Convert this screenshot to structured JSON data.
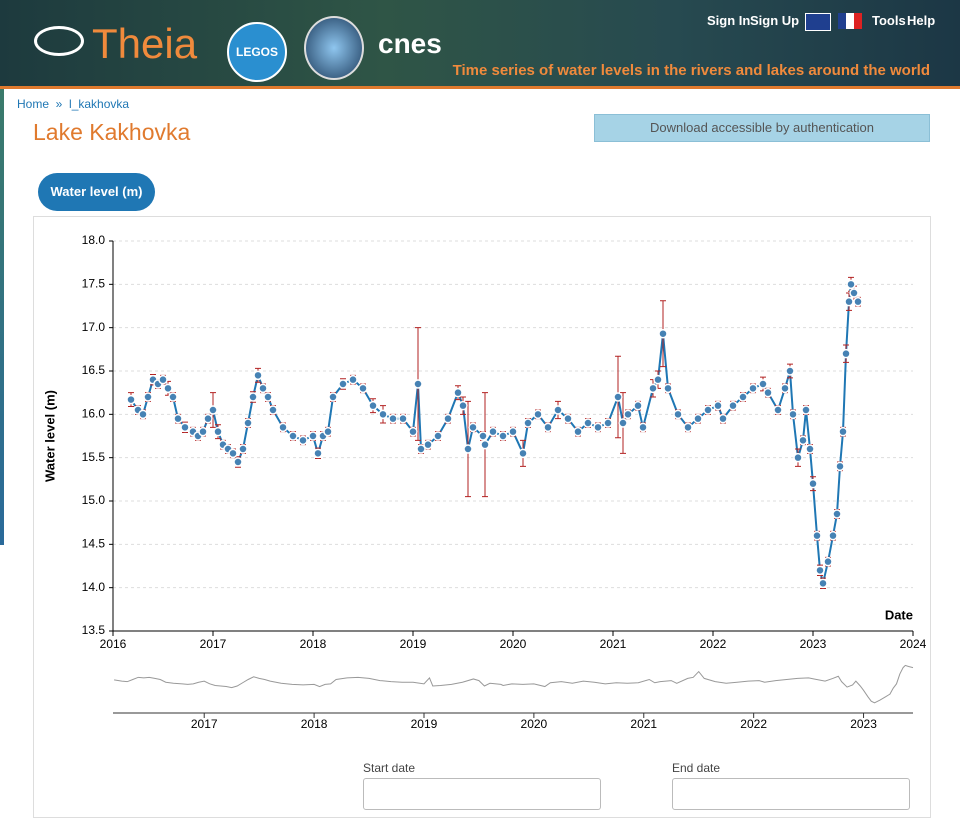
{
  "header": {
    "logo": "Theia",
    "logo2": "LEGOS",
    "logo3": "cnes",
    "links": [
      "Sign In",
      "Sign Up",
      "Tools",
      "Help"
    ],
    "tagline": "Time series of water levels in the rivers and lakes around the world"
  },
  "breadcrumb": [
    "Home",
    "l_kakhovka"
  ],
  "title": "Lake Kakhovka",
  "download": "Download accessible by authentication",
  "tab": "Water level (m)",
  "chart_data": {
    "type": "scatter",
    "ylabel": "Water level (m)",
    "xlabel": "Date",
    "color": "#4682b4",
    "line_color": "#1f77b4",
    "error_color": "#b22222",
    "grid": true,
    "xlim": [
      2016,
      2024
    ],
    "xticks": [
      2016,
      2017,
      2018,
      2019,
      2020,
      2021,
      2022,
      2023,
      2024
    ],
    "ylim": [
      13.5,
      18
    ],
    "yticks": [
      13.5,
      {
        "value": 14,
        "label": "14.0"
      },
      14.5,
      {
        "value": 15,
        "label": "15.0"
      },
      15.5,
      {
        "value": 16,
        "label": "16.0"
      },
      16.5,
      {
        "value": 17,
        "label": "17.0"
      },
      17.5,
      {
        "value": 18,
        "label": "18.0"
      }
    ],
    "x": [
      2016.18,
      2016.25,
      2016.3,
      2016.35,
      2016.4,
      2016.45,
      2016.5,
      2016.55,
      2016.6,
      2016.65,
      2016.72,
      2016.8,
      2016.85,
      2016.9,
      2016.95,
      2017.0,
      2017.05,
      2017.1,
      2017.15,
      2017.2,
      2017.25,
      2017.3,
      2017.35,
      2017.4,
      2017.45,
      2017.5,
      2017.55,
      2017.6,
      2017.7,
      2017.8,
      2017.9,
      2018.0,
      2018.05,
      2018.1,
      2018.15,
      2018.2,
      2018.3,
      2018.4,
      2018.5,
      2018.6,
      2018.7,
      2018.8,
      2018.9,
      2019.0,
      2019.05,
      2019.08,
      2019.15,
      2019.25,
      2019.35,
      2019.45,
      2019.5,
      2019.55,
      2019.6,
      2019.7,
      2019.72,
      2019.8,
      2019.9,
      2020.0,
      2020.1,
      2020.15,
      2020.25,
      2020.35,
      2020.45,
      2020.55,
      2020.65,
      2020.75,
      2020.85,
      2020.95,
      2021.05,
      2021.1,
      2021.15,
      2021.25,
      2021.3,
      2021.4,
      2021.45,
      2021.5,
      2021.55,
      2021.65,
      2021.75,
      2021.85,
      2021.95,
      2022.05,
      2022.1,
      2022.2,
      2022.3,
      2022.4,
      2022.5,
      2022.55,
      2022.65,
      2022.72,
      2022.77,
      2022.8,
      2022.85,
      2022.9,
      2022.93,
      2022.97,
      2023.0,
      2023.04,
      2023.07,
      2023.1,
      2023.15,
      2023.2,
      2023.24,
      2023.27,
      2023.3,
      2023.33,
      2023.36,
      2023.38,
      2023.41,
      2023.45
    ],
    "values": [
      16.17,
      16.05,
      16.0,
      16.2,
      16.4,
      16.35,
      16.4,
      16.3,
      16.2,
      15.95,
      15.85,
      15.8,
      15.75,
      15.8,
      15.95,
      16.05,
      15.8,
      15.65,
      15.6,
      15.55,
      15.45,
      15.6,
      15.9,
      16.2,
      16.45,
      16.3,
      16.2,
      16.05,
      15.85,
      15.75,
      15.7,
      15.75,
      15.55,
      15.75,
      15.8,
      16.2,
      16.35,
      16.4,
      16.3,
      16.1,
      16.0,
      15.95,
      15.95,
      15.8,
      16.35,
      15.6,
      15.65,
      15.75,
      15.95,
      16.25,
      16.1,
      15.6,
      15.85,
      15.75,
      15.65,
      15.8,
      15.75,
      15.8,
      15.55,
      15.9,
      16.0,
      15.85,
      16.05,
      15.95,
      15.8,
      15.9,
      15.85,
      15.9,
      16.2,
      15.9,
      16.0,
      16.1,
      15.85,
      16.3,
      16.4,
      16.93,
      16.3,
      16.0,
      15.85,
      15.95,
      16.05,
      16.1,
      15.95,
      16.1,
      16.2,
      16.3,
      16.35,
      16.25,
      16.05,
      16.3,
      16.5,
      16.0,
      15.5,
      15.7,
      16.05,
      15.6,
      15.2,
      14.6,
      14.2,
      14.05,
      14.3,
      14.6,
      14.85,
      15.4,
      15.8,
      16.7,
      17.3,
      17.5,
      17.4,
      17.3
    ],
    "errors": [
      0.08,
      0.05,
      0.05,
      0.05,
      0.06,
      0.05,
      0.05,
      0.08,
      0.05,
      0.05,
      0.06,
      0.05,
      0.05,
      0.05,
      0.05,
      0.2,
      0.08,
      0.05,
      0.05,
      0.05,
      0.06,
      0.05,
      0.05,
      0.06,
      0.08,
      0.05,
      0.05,
      0.05,
      0.05,
      0.05,
      0.05,
      0.05,
      0.06,
      0.05,
      0.05,
      0.05,
      0.06,
      0.05,
      0.05,
      0.08,
      0.1,
      0.05,
      0.05,
      0.05,
      0.65,
      0.05,
      0.05,
      0.05,
      0.05,
      0.08,
      0.1,
      0.55,
      0.05,
      0.05,
      0.6,
      0.05,
      0.05,
      0.05,
      0.15,
      0.05,
      0.05,
      0.05,
      0.1,
      0.05,
      0.05,
      0.05,
      0.05,
      0.05,
      0.47,
      0.35,
      0.05,
      0.05,
      0.05,
      0.1,
      0.1,
      0.38,
      0.05,
      0.05,
      0.05,
      0.05,
      0.05,
      0.05,
      0.05,
      0.05,
      0.05,
      0.05,
      0.08,
      0.05,
      0.05,
      0.05,
      0.08,
      0.05,
      0.1,
      0.05,
      0.05,
      0.05,
      0.08,
      0.05,
      0.06,
      0.06,
      0.05,
      0.05,
      0.05,
      0.05,
      0.05,
      0.1,
      0.1,
      0.08,
      0.08,
      0.05
    ]
  },
  "navigator": {
    "xlim": [
      2016.17,
      2023.45
    ],
    "ylim": [
      13.2,
      18
    ],
    "xticks": [
      2017,
      2018,
      2019,
      2020,
      2021,
      2022,
      2023
    ],
    "color": "#999999"
  },
  "dates": {
    "start": "Start date",
    "end": "End date"
  }
}
